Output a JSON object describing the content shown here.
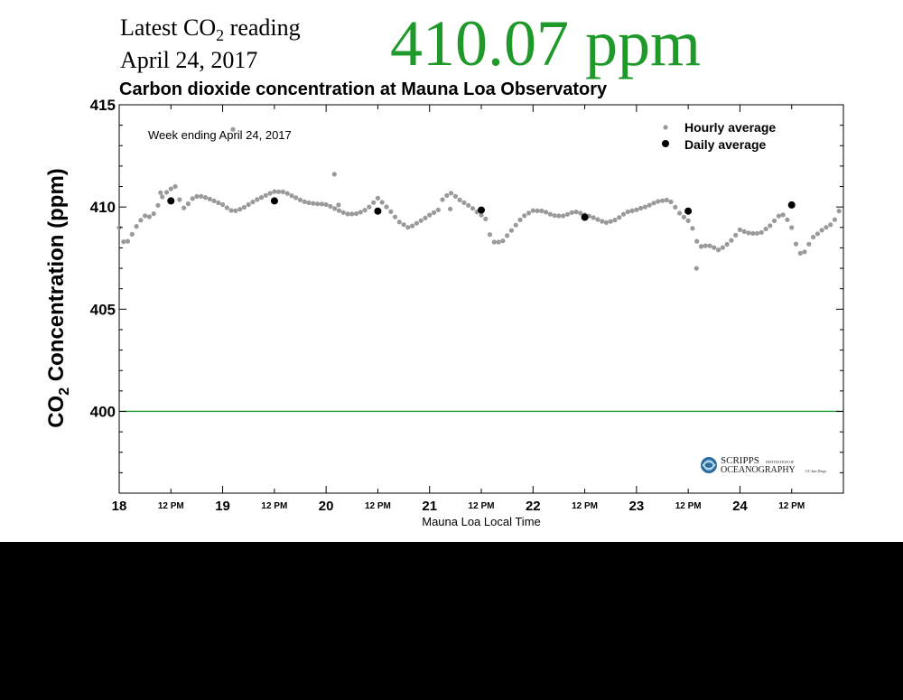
{
  "header": {
    "latest_label_prefix": "Latest CO",
    "latest_label_sub": "2",
    "latest_label_suffix": " reading",
    "latest_date": "April 24, 2017",
    "big_reading": "410.07 ppm"
  },
  "logo": {
    "text_1": "SCRIPPS",
    "text_2": "INSTITUTION OF",
    "text_3": "OCEANOGRAPHY",
    "text_4": "UC San Diego"
  },
  "colors": {
    "reading": "#1f9a2a",
    "hourly": "#9a9a9a",
    "daily": "#000000",
    "reference_line": "#1f9a2a"
  },
  "chart_data": {
    "type": "scatter",
    "title": "Carbon dioxide concentration at Mauna Loa Observatory",
    "annotation": "Week ending April 24, 2017",
    "xlabel": "Mauna Loa Local Time",
    "ylabel_prefix": "CO",
    "ylabel_sub": "2",
    "ylabel_suffix": " Concentration (ppm)",
    "xlim": [
      18,
      25
    ],
    "ylim": [
      396,
      415
    ],
    "y_ticks": [
      400,
      405,
      410,
      415
    ],
    "x_day_ticks": [
      "18",
      "19",
      "20",
      "21",
      "22",
      "23",
      "24"
    ],
    "x_noon_tick_label": "12 PM",
    "reference_line": 400,
    "legend": {
      "position": "top-right",
      "hourly": "Hourly average",
      "daily": "Daily average"
    },
    "daily_average": {
      "x": [
        18.5,
        19.5,
        20.5,
        21.5,
        22.5,
        23.5,
        24.5
      ],
      "y": [
        410.3,
        410.3,
        409.8,
        409.85,
        409.5,
        409.8,
        410.1
      ]
    },
    "hourly_anchor_x": [
      18.0,
      18.05,
      18.1,
      18.15,
      18.2,
      18.25,
      18.3,
      18.35,
      18.4,
      18.45,
      18.5,
      18.55,
      18.58,
      18.6,
      18.65,
      18.7,
      18.75,
      18.8,
      18.9,
      19.0,
      19.1,
      19.2,
      19.3,
      19.4,
      19.5,
      19.6,
      19.7,
      19.8,
      19.9,
      20.0,
      20.1,
      20.2,
      20.3,
      20.4,
      20.5,
      20.6,
      20.7,
      20.8,
      20.9,
      21.0,
      21.1,
      21.12,
      21.2,
      21.3,
      21.4,
      21.5,
      21.55,
      21.6,
      21.7,
      21.8,
      21.9,
      22.0,
      22.1,
      22.2,
      22.3,
      22.4,
      22.5,
      22.6,
      22.7,
      22.8,
      22.9,
      23.0,
      23.1,
      23.2,
      23.3,
      23.35,
      23.4,
      23.5,
      23.55,
      23.6,
      23.7,
      23.8,
      23.9,
      24.0,
      24.1,
      24.2,
      24.3,
      24.4,
      24.45,
      24.5,
      24.55,
      24.6,
      24.7,
      24.8,
      24.9,
      25.0
    ],
    "hourly_anchor_y": [
      409.0,
      408.1,
      408.3,
      408.8,
      409.2,
      409.5,
      409.5,
      409.8,
      410.5,
      410.8,
      411.0,
      411.1,
      410.5,
      409.9,
      410.0,
      410.3,
      410.4,
      410.4,
      410.3,
      410.2,
      409.9,
      410.0,
      410.2,
      410.4,
      410.7,
      410.8,
      410.6,
      410.3,
      410.1,
      410.0,
      409.8,
      409.7,
      409.8,
      410.0,
      410.4,
      409.8,
      409.2,
      409.0,
      409.4,
      409.7,
      409.9,
      410.3,
      410.6,
      410.2,
      410.0,
      409.7,
      409.5,
      408.4,
      408.3,
      408.8,
      409.4,
      409.8,
      409.9,
      409.7,
      409.6,
      409.7,
      409.5,
      409.4,
      409.3,
      409.5,
      409.8,
      409.8,
      409.9,
      410.2,
      410.4,
      410.3,
      409.9,
      409.4,
      408.9,
      408.0,
      408.0,
      407.8,
      408.3,
      409.0,
      408.8,
      408.7,
      409.0,
      409.6,
      409.4,
      409.0,
      408.1,
      407.7,
      408.6,
      408.9,
      409.1,
      410.1
    ],
    "hourly_outliers": {
      "x": [
        18.4,
        19.1,
        20.08,
        20.12,
        21.2,
        23.58
      ],
      "y": [
        410.7,
        413.8,
        411.6,
        410.1,
        409.9,
        407.0
      ]
    }
  }
}
